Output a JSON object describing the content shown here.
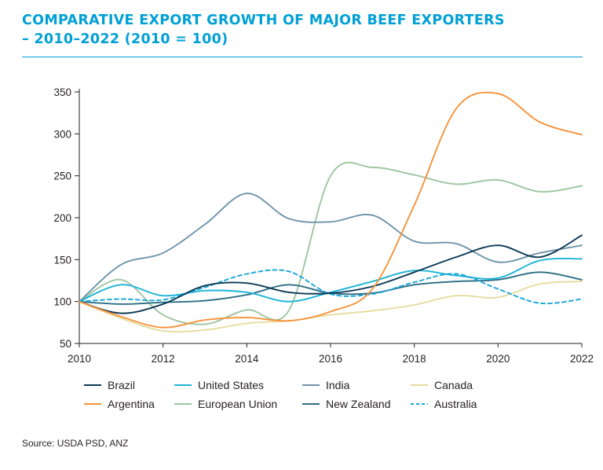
{
  "header": {
    "title_line1": "COMPARATIVE EXPORT GROWTH OF MAJOR BEEF EXPORTERS",
    "title_line2": "– 2010–2022 (2010 = 100)"
  },
  "footer": {
    "source": "Source: USDA PSD, ANZ"
  },
  "chart_data": {
    "type": "line",
    "title": "COMPARATIVE EXPORT GROWTH OF MAJOR BEEF EXPORTERS – 2010–2022 (2010 = 100)",
    "xlim": [
      2010,
      2022
    ],
    "ylim": [
      50,
      350
    ],
    "x_ticks": [
      2010,
      2012,
      2014,
      2016,
      2018,
      2020,
      2022
    ],
    "y_ticks": [
      50,
      100,
      150,
      200,
      250,
      300,
      350
    ],
    "x_tick_labels": [
      "2010",
      "2012",
      "2014",
      "2016",
      "2018",
      "2020",
      "2022"
    ],
    "y_tick_labels": [
      "50",
      "100",
      "150",
      "200",
      "250",
      "300",
      "350"
    ],
    "grid": false,
    "legend_position": "bottom",
    "x": [
      2010,
      2011,
      2012,
      2013,
      2014,
      2015,
      2016,
      2017,
      2018,
      2019,
      2020,
      2021,
      2022
    ],
    "series": [
      {
        "name": "Brazil",
        "color": "#0d3a55",
        "dash": "solid",
        "values": [
          100,
          86,
          97,
          119,
          122,
          111,
          110,
          118,
          135,
          153,
          167,
          153,
          179
        ]
      },
      {
        "name": "Argentina",
        "color": "#f7923a",
        "dash": "solid",
        "values": [
          100,
          82,
          69,
          78,
          81,
          77,
          88,
          115,
          215,
          330,
          348,
          314,
          299
        ]
      },
      {
        "name": "United States",
        "color": "#1cb5d6",
        "dash": "solid",
        "values": [
          100,
          120,
          107,
          113,
          111,
          100,
          111,
          124,
          137,
          131,
          128,
          149,
          151
        ]
      },
      {
        "name": "European Union",
        "color": "#9ec5a0",
        "dash": "solid",
        "values": [
          100,
          126,
          84,
          73,
          90,
          89,
          250,
          260,
          251,
          240,
          245,
          231,
          238
        ]
      },
      {
        "name": "India",
        "color": "#6e94a8",
        "dash": "solid",
        "values": [
          100,
          144,
          158,
          192,
          229,
          199,
          195,
          203,
          172,
          169,
          147,
          158,
          167
        ]
      },
      {
        "name": "New Zealand",
        "color": "#2d6e86",
        "dash": "solid",
        "values": [
          100,
          97,
          99,
          101,
          108,
          120,
          110,
          110,
          120,
          124,
          126,
          135,
          126
        ]
      },
      {
        "name": "Canada",
        "color": "#e6dca0",
        "dash": "solid",
        "values": [
          100,
          80,
          65,
          66,
          74,
          77,
          84,
          89,
          96,
          107,
          105,
          121,
          124
        ]
      },
      {
        "name": "Australia",
        "color": "#1aa6d9",
        "dash": "dashed",
        "values": [
          100,
          103,
          102,
          117,
          133,
          136,
          109,
          109,
          123,
          133,
          115,
          98,
          103
        ]
      }
    ]
  }
}
